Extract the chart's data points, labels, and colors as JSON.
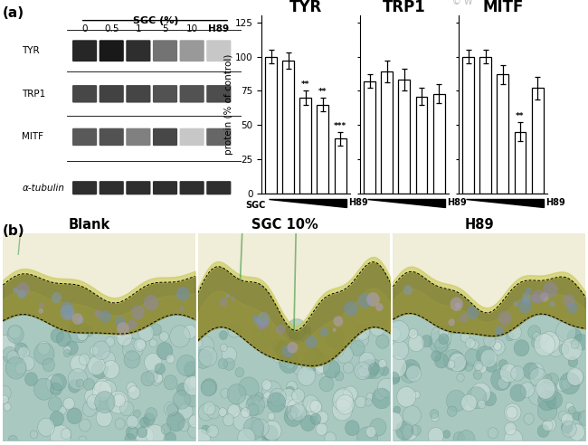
{
  "panel_a_label": "(a)",
  "panel_b_label": "(b)",
  "wb_rows": [
    "TYR",
    "TRP1",
    "MITF",
    "α-tubulin"
  ],
  "wb_cols": [
    "0",
    "0.5",
    "1",
    "5",
    "10",
    "H89"
  ],
  "sgc_label": "SGC (%)",
  "wb_intensities": [
    [
      0.85,
      0.9,
      0.82,
      0.55,
      0.4,
      0.22
    ],
    [
      0.72,
      0.74,
      0.73,
      0.68,
      0.68,
      0.7
    ],
    [
      0.65,
      0.68,
      0.5,
      0.72,
      0.22,
      0.6
    ],
    [
      0.82,
      0.82,
      0.82,
      0.82,
      0.82,
      0.82
    ]
  ],
  "bar_groups": {
    "TYR": {
      "values": [
        100,
        97,
        70,
        65,
        40
      ],
      "errors": [
        5,
        6,
        5,
        5,
        5
      ],
      "sig": [
        "",
        "",
        "**",
        "**",
        "***"
      ]
    },
    "TRP1": {
      "values": [
        82,
        89,
        83,
        71,
        73
      ],
      "errors": [
        5,
        8,
        8,
        6,
        7
      ],
      "sig": [
        "",
        "",
        "",
        "",
        ""
      ]
    },
    "MITF": {
      "values": [
        100,
        100,
        87,
        45,
        77
      ],
      "errors": [
        5,
        5,
        7,
        7,
        8
      ],
      "sig": [
        "",
        "",
        "",
        "**",
        ""
      ]
    }
  },
  "ylabel": "protein (% of control)",
  "ylim": [
    0,
    130
  ],
  "yticks": [
    0,
    25,
    50,
    75,
    100,
    125
  ],
  "bar_color": "#ffffff",
  "bar_edgecolor": "#000000",
  "microscopy_titles": [
    "Blank",
    "SGC 10%",
    "H89"
  ],
  "watermark_color": "#bbbbbb",
  "bg_color": "#ffffff"
}
